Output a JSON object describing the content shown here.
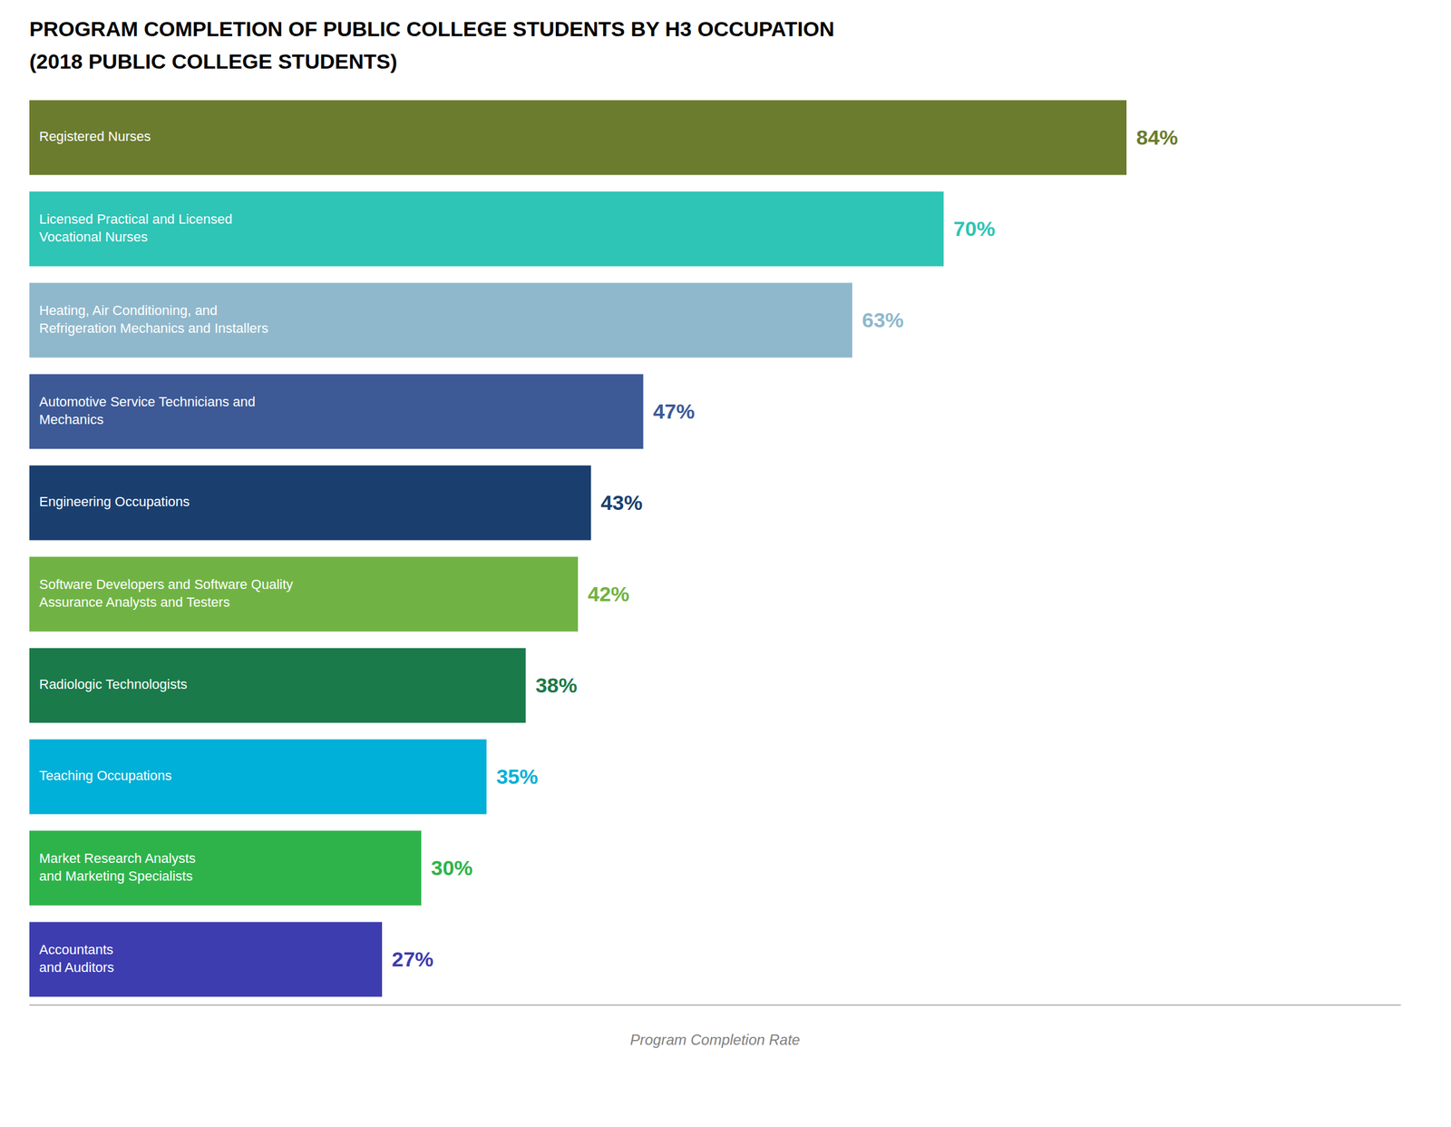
{
  "chart_data": {
    "type": "bar",
    "orientation": "horizontal",
    "title": "PROGRAM COMPLETION OF PUBLIC COLLEGE STUDENTS BY H3 OCCUPATION",
    "subtitle": "(2018 PUBLIC COLLEGE STUDENTS)",
    "xlabel": "Program Completion Rate",
    "categories": [
      "Registered Nurses",
      "Licensed Practical and Licensed\nVocational Nurses",
      "Heating, Air Conditioning, and\nRefrigeration Mechanics and Installers",
      "Automotive Service Technicians and\nMechanics",
      "Engineering Occupations",
      "Software Developers and Software Quality\nAssurance Analysts and Testers",
      "Radiologic Technologists",
      "Teaching Occupations",
      "Market Research Analysts\nand Marketing Specialists",
      "Accountants\nand Auditors"
    ],
    "values": [
      84,
      70,
      63,
      47,
      43,
      42,
      38,
      35,
      30,
      27
    ],
    "value_labels": [
      "84%",
      "70%",
      "63%",
      "47%",
      "43%",
      "42%",
      "38%",
      "35%",
      "30%",
      "27%"
    ],
    "data_labels": true,
    "colors": [
      "#6b7c2e",
      "#2ec4b6",
      "#8fb8cc",
      "#3d5a96",
      "#1a3f6f",
      "#70b344",
      "#1a7a4a",
      "#00b0d8",
      "#2db34a",
      "#3d3db0"
    ],
    "xlim": [
      0,
      105
    ],
    "tick_labels": false,
    "grid": false
  }
}
